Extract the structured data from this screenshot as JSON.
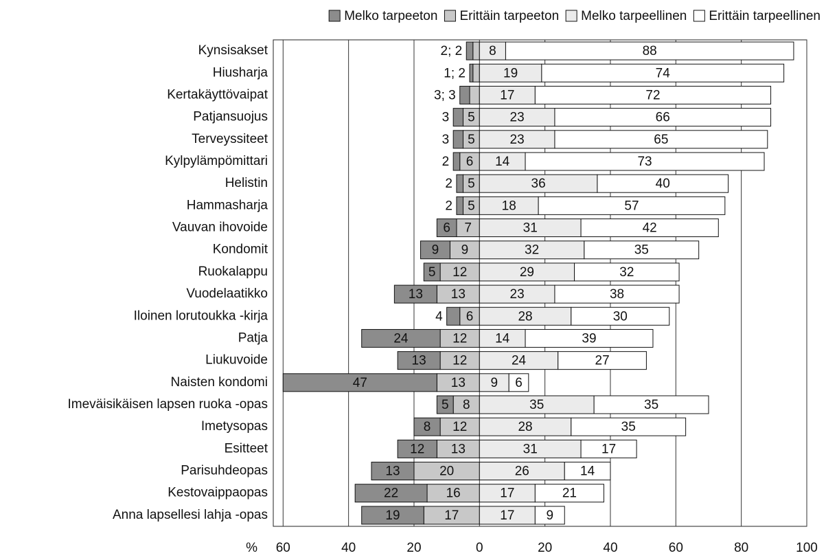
{
  "chart_data": {
    "type": "diverging_bar",
    "categories": [
      "Kynsisakset",
      "Hiusharja",
      "Kertakäyttövaipat",
      "Patjansuojus",
      "Terveyssiteet",
      "Kylpylämpömittari",
      "Helistin",
      "Hammasharja",
      "Vauvan ihovoide",
      "Kondomit",
      "Ruokalappu",
      "Vuodelaatikko",
      "Iloinen lorutoukka -kirja",
      "Patja",
      "Liukuvoide",
      "Naisten kondomi",
      "Imeväisikäisen lapsen ruoka -opas",
      "Imetysopas",
      "Esitteet",
      "Parisuhdeopas",
      "Kestovaippaopas",
      "Anna lapsellesi lahja -opas"
    ],
    "series": [
      {
        "name": "Melko tarpeeton",
        "color": "#8c8c8c",
        "side": "negative",
        "values": [
          2,
          1,
          3,
          3,
          3,
          2,
          2,
          2,
          6,
          9,
          5,
          13,
          4,
          24,
          13,
          47,
          5,
          8,
          12,
          13,
          22,
          19
        ],
        "value_labels": [
          "2; 2",
          "1; 2",
          "3; 3",
          "3",
          "3",
          "2",
          "2",
          "2",
          "6",
          "9",
          "5",
          "13",
          "4",
          "24",
          "13",
          "47",
          "5",
          "8",
          "12",
          "13",
          "22",
          "19"
        ]
      },
      {
        "name": "Erittäin tarpeeton",
        "color": "#c8c8c8",
        "side": "negative",
        "values": [
          2,
          2,
          3,
          5,
          5,
          6,
          5,
          5,
          7,
          9,
          12,
          13,
          6,
          12,
          12,
          13,
          8,
          12,
          13,
          20,
          16,
          17
        ],
        "value_labels": [
          null,
          null,
          null,
          "5",
          "5",
          "6",
          "5",
          "5",
          "7",
          "9",
          "12",
          "13",
          "6",
          "12",
          "12",
          "13",
          "8",
          "12",
          "13",
          "20",
          "16",
          "17"
        ]
      },
      {
        "name": "Melko tarpeellinen",
        "color": "#ebebeb",
        "side": "positive",
        "values": [
          8,
          19,
          17,
          23,
          23,
          14,
          36,
          18,
          31,
          32,
          29,
          23,
          28,
          14,
          24,
          9,
          35,
          28,
          31,
          26,
          17,
          17
        ]
      },
      {
        "name": "Erittäin tarpeellinen",
        "color": "#ffffff",
        "side": "positive",
        "values": [
          88,
          74,
          72,
          66,
          65,
          73,
          40,
          57,
          42,
          35,
          32,
          38,
          30,
          39,
          27,
          6,
          35,
          35,
          17,
          14,
          21,
          9
        ]
      }
    ],
    "x_label": "%",
    "xlim": [
      -63,
      100
    ],
    "xticks": [
      {
        "value": -60,
        "label": "60"
      },
      {
        "value": -40,
        "label": "40"
      },
      {
        "value": -20,
        "label": "20"
      },
      0,
      20,
      40,
      60,
      80,
      100
    ],
    "grid": true,
    "legend": "top"
  }
}
